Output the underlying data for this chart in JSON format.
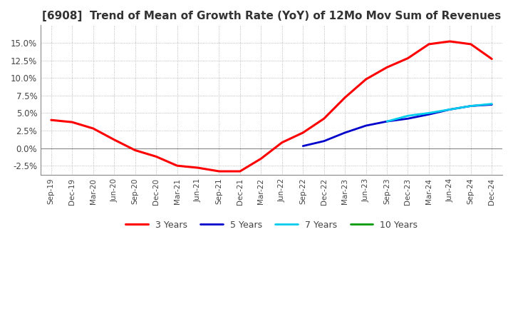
{
  "title": "[6908]  Trend of Mean of Growth Rate (YoY) of 12Mo Mov Sum of Revenues",
  "title_fontsize": 11,
  "background_color": "#ffffff",
  "plot_bg_color": "#f5f5f5",
  "grid_color": "#aaaaaa",
  "ylim": [
    -0.038,
    0.175
  ],
  "yticks": [
    -0.025,
    0.0,
    0.025,
    0.05,
    0.075,
    0.1,
    0.125,
    0.15
  ],
  "legend_labels": [
    "3 Years",
    "5 Years",
    "7 Years",
    "10 Years"
  ],
  "legend_colors": [
    "#ff0000",
    "#0000cc",
    "#00ccee",
    "#009900"
  ],
  "x_labels": [
    "Sep-19",
    "Dec-19",
    "Mar-20",
    "Jun-20",
    "Sep-20",
    "Dec-20",
    "Mar-21",
    "Jun-21",
    "Sep-21",
    "Dec-21",
    "Mar-22",
    "Jun-22",
    "Sep-22",
    "Dec-22",
    "Mar-23",
    "Jun-23",
    "Sep-23",
    "Dec-23",
    "Mar-24",
    "Jun-24",
    "Sep-24",
    "Dec-24"
  ],
  "series_3y": [
    0.04,
    0.037,
    0.028,
    0.012,
    -0.003,
    -0.012,
    -0.025,
    -0.028,
    -0.033,
    -0.033,
    -0.015,
    0.008,
    0.022,
    0.042,
    0.072,
    0.098,
    0.115,
    0.128,
    0.148,
    0.152,
    0.148,
    0.127
  ],
  "series_5y": [
    null,
    null,
    null,
    null,
    null,
    null,
    null,
    null,
    null,
    null,
    null,
    null,
    0.003,
    0.01,
    0.022,
    0.032,
    0.038,
    0.042,
    0.048,
    0.055,
    0.06,
    0.062
  ],
  "series_7y": [
    null,
    null,
    null,
    null,
    null,
    null,
    null,
    null,
    null,
    null,
    null,
    null,
    null,
    null,
    null,
    null,
    0.038,
    0.046,
    0.05,
    0.055,
    0.06,
    0.063
  ],
  "series_10y": [
    null,
    null,
    null,
    null,
    null,
    null,
    null,
    null,
    null,
    null,
    null,
    null,
    null,
    null,
    null,
    null,
    null,
    null,
    null,
    null,
    null,
    null
  ]
}
